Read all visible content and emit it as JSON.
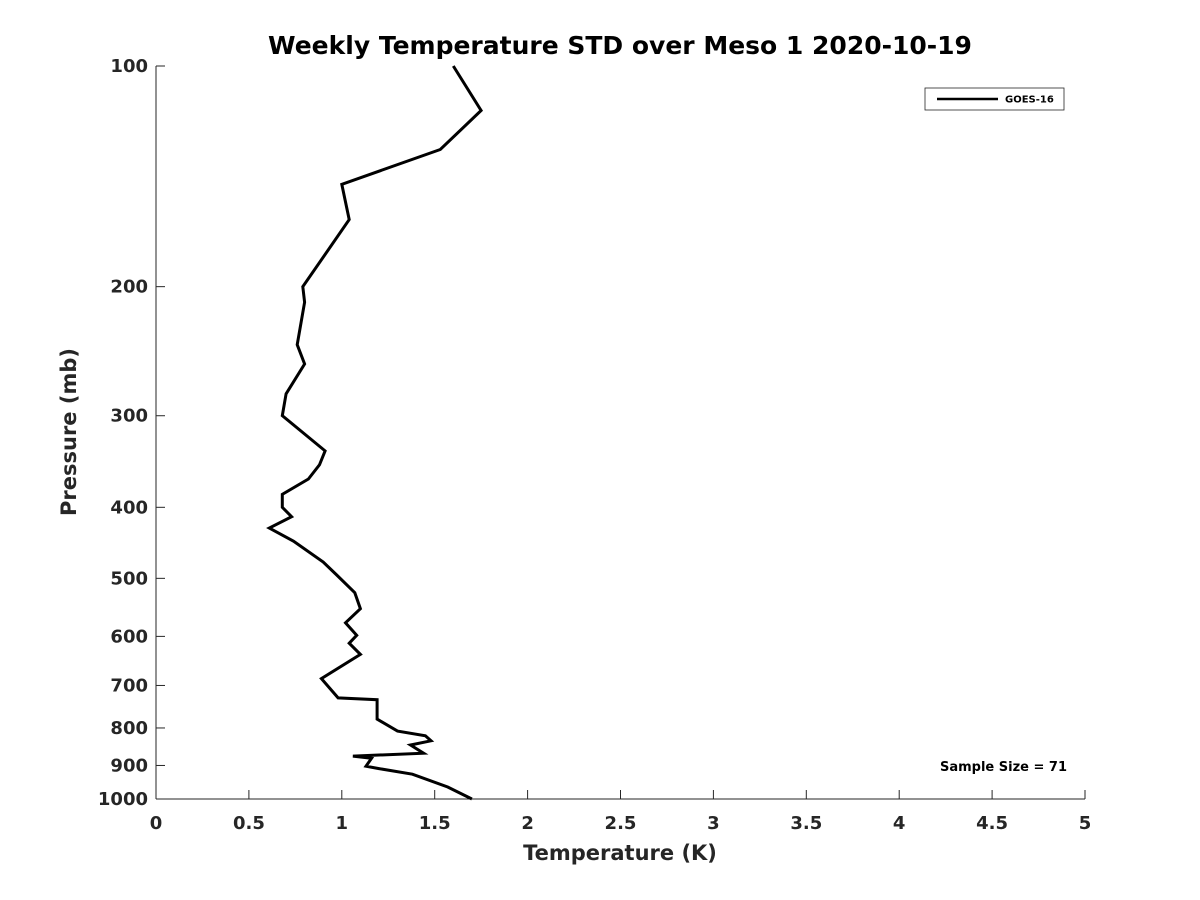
{
  "chart_data": {
    "type": "line",
    "title": "Weekly Temperature STD over Meso 1 2020-10-19",
    "xlabel": "Temperature (K)",
    "ylabel": "Pressure (mb)",
    "xlim": [
      0,
      5
    ],
    "ylim": [
      100,
      1000
    ],
    "y_scale": "log",
    "y_reversed": true,
    "x_ticks": [
      0,
      0.5,
      1,
      1.5,
      2,
      2.5,
      3,
      3.5,
      4,
      4.5,
      5
    ],
    "x_tick_labels": [
      "0",
      "0.5",
      "1",
      "1.5",
      "2",
      "2.5",
      "3",
      "3.5",
      "4",
      "4.5",
      "5"
    ],
    "y_ticks": [
      100,
      200,
      300,
      400,
      500,
      600,
      700,
      800,
      900,
      1000
    ],
    "y_tick_labels": [
      "100",
      "200",
      "300",
      "400",
      "500",
      "600",
      "700",
      "800",
      "900",
      "1000"
    ],
    "grid": false,
    "legend_position": "top-right",
    "annotation": "Sample Size = 71",
    "series": [
      {
        "name": "GOES-16",
        "color": "#000000",
        "x": [
          1.6,
          1.75,
          1.53,
          1.0,
          1.04,
          0.79,
          0.8,
          0.76,
          0.8,
          0.7,
          0.68,
          0.91,
          0.88,
          0.82,
          0.68,
          0.68,
          0.73,
          0.61,
          0.74,
          0.9,
          0.97,
          1.07,
          1.1,
          1.02,
          1.08,
          1.04,
          1.1,
          0.89,
          0.98,
          1.19,
          1.19,
          1.3,
          1.45,
          1.48,
          1.37,
          1.44,
          1.06,
          1.16,
          1.13,
          1.2,
          1.38,
          1.57,
          1.7
        ],
        "y": [
          100,
          115,
          130,
          145,
          162,
          200,
          210,
          240,
          255,
          280,
          300,
          335,
          350,
          366,
          384,
          400,
          412,
          427,
          445,
          475,
          494,
          523,
          550,
          575,
          598,
          613,
          635,
          685,
          728,
          732,
          778,
          808,
          820,
          833,
          844,
          866,
          874,
          880,
          902,
          909,
          925,
          963,
          1000
        ]
      }
    ]
  }
}
